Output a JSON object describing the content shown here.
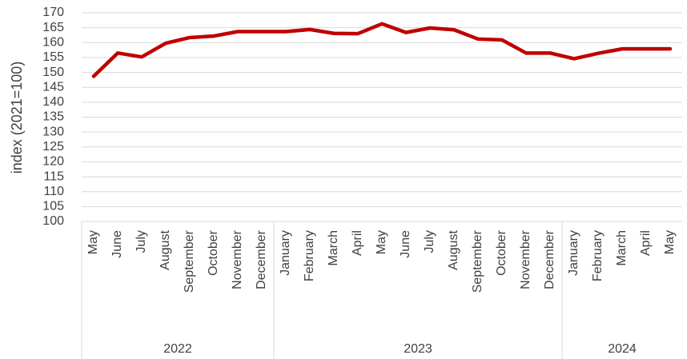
{
  "chart_data": {
    "type": "line",
    "y_axis_label": "index (2021=100)",
    "groups": [
      {
        "name": "2022",
        "categories": [
          "May",
          "June",
          "July",
          "August",
          "September",
          "October",
          "November",
          "December"
        ]
      },
      {
        "name": "2023",
        "categories": [
          "January",
          "February",
          "March",
          "April",
          "May",
          "June",
          "July",
          "August",
          "September",
          "October",
          "November",
          "December"
        ]
      },
      {
        "name": "2024",
        "categories": [
          "January",
          "February",
          "March",
          "April",
          "May"
        ]
      }
    ],
    "series": [
      {
        "name": "index",
        "color": "#c00000",
        "values": [
          148.7,
          156.5,
          155.2,
          159.8,
          161.7,
          162.2,
          163.7,
          163.7,
          163.7,
          164.4,
          163.1,
          163.0,
          166.3,
          163.4,
          164.9,
          164.3,
          161.2,
          160.9,
          156.5,
          156.5,
          154.6,
          156.4,
          157.9,
          157.9,
          157.9
        ]
      }
    ],
    "ylim": [
      100,
      170
    ],
    "yticks": [
      100,
      105,
      110,
      115,
      120,
      125,
      130,
      135,
      140,
      145,
      150,
      155,
      160,
      165,
      170
    ],
    "grid": true
  }
}
